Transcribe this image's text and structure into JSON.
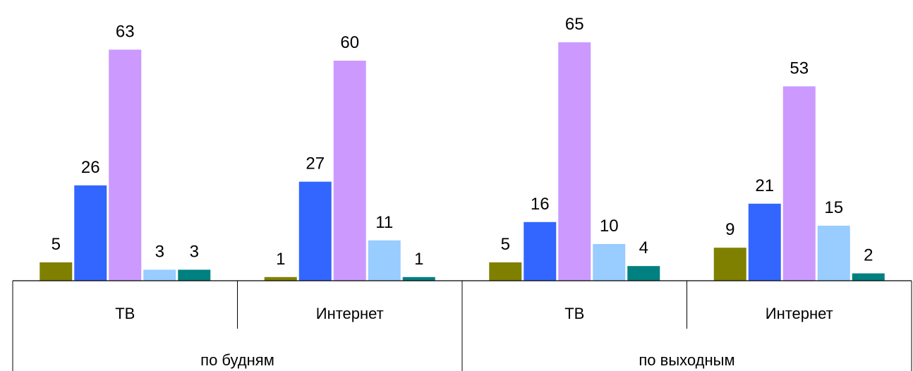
{
  "chart_data": {
    "type": "bar",
    "title": "",
    "xlabel": "",
    "ylabel": "",
    "ylim": [
      0,
      70
    ],
    "grid": false,
    "legend": "none",
    "groups": [
      {
        "label": "по будням",
        "categories": [
          "ТВ",
          "Интернет"
        ]
      },
      {
        "label": "по выходным",
        "categories": [
          "ТВ",
          "Интернет"
        ]
      }
    ],
    "categories": [
      "ТВ",
      "Интернет",
      "ТВ",
      "Интернет"
    ],
    "series": [
      {
        "color": "#808000",
        "values": [
          5,
          1,
          5,
          9
        ]
      },
      {
        "color": "#3366ff",
        "values": [
          26,
          27,
          16,
          21
        ]
      },
      {
        "color": "#cc99ff",
        "values": [
          63,
          60,
          65,
          53
        ]
      },
      {
        "color": "#99ccff",
        "values": [
          3,
          11,
          10,
          15
        ]
      },
      {
        "color": "#008080",
        "values": [
          3,
          1,
          4,
          2
        ]
      }
    ]
  }
}
